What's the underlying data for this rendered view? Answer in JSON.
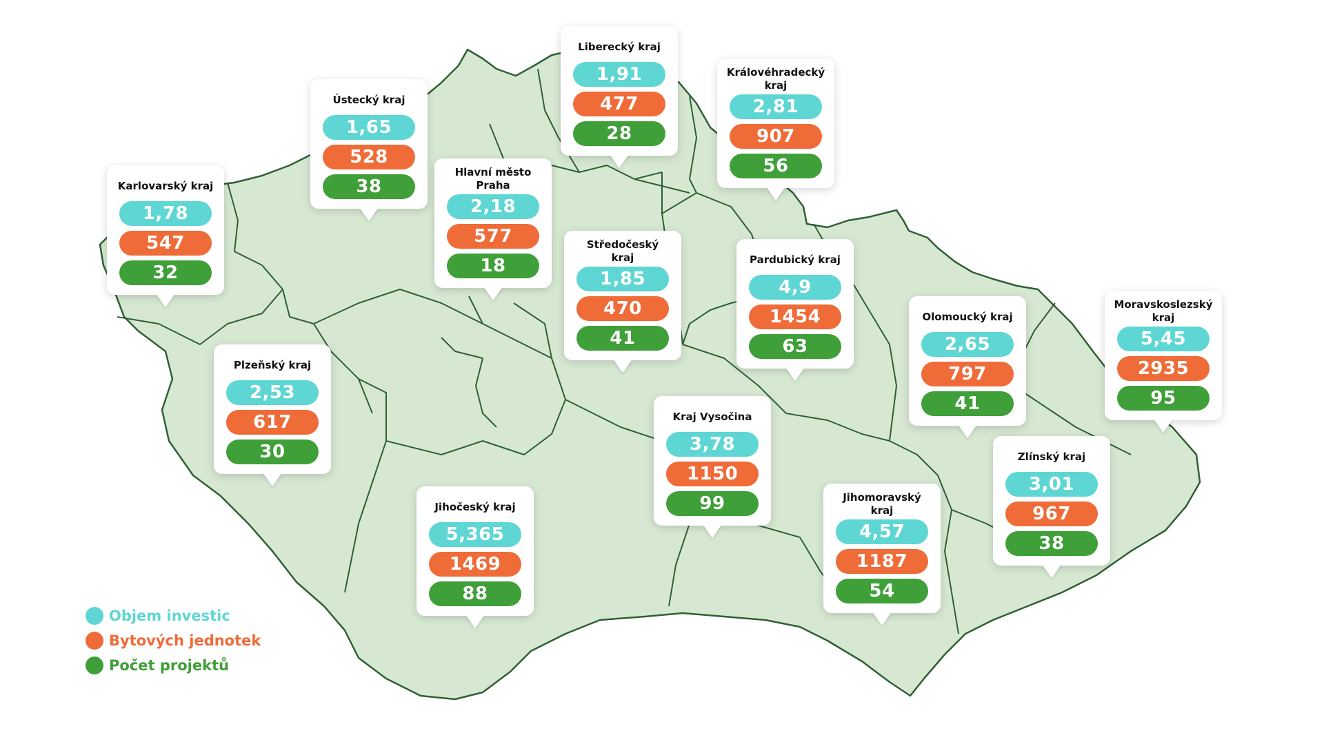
{
  "colors": {
    "investice": "#5ed6d3",
    "byty": "#ef6b38",
    "projekty": "#3f9f38",
    "map_fill": "#d6e8d2",
    "map_border": "#2f5f33"
  },
  "legend": [
    {
      "label": "Objem investic",
      "color": "#5ed6d3"
    },
    {
      "label": "Bytových jednotek",
      "color": "#ef6b38"
    },
    {
      "label": "Počet projektů",
      "color": "#3f9f38"
    }
  ],
  "regions": [
    {
      "id": "karlovarsky",
      "name": "Karlovarský kraj",
      "investice": "1,78",
      "byty": "547",
      "projekty": "32"
    },
    {
      "id": "ustecky",
      "name": "Ústecký kraj",
      "investice": "1,65",
      "byty": "528",
      "projekty": "38"
    },
    {
      "id": "praha",
      "name": "Hlavní město\nPraha",
      "investice": "2,18",
      "byty": "577",
      "projekty": "18"
    },
    {
      "id": "liberecky",
      "name": "Liberecký kraj",
      "investice": "1,91",
      "byty": "477",
      "projekty": "28"
    },
    {
      "id": "kralovehradecky",
      "name": "Královéhradecký\nkraj",
      "investice": "2,81",
      "byty": "907",
      "projekty": "56"
    },
    {
      "id": "stredocesky",
      "name": "Středočeský kraj",
      "investice": "1,85",
      "byty": "470",
      "projekty": "41"
    },
    {
      "id": "pardubicky",
      "name": "Pardubický kraj",
      "investice": "4,9",
      "byty": "1454",
      "projekty": "63"
    },
    {
      "id": "olomoucky",
      "name": "Olomoucký kraj",
      "investice": "2,65",
      "byty": "797",
      "projekty": "41"
    },
    {
      "id": "moravskoslezsky",
      "name": "Moravskoslezský\nkraj",
      "investice": "5,45",
      "byty": "2935",
      "projekty": "95"
    },
    {
      "id": "plzensky",
      "name": "Plzeňský kraj",
      "investice": "2,53",
      "byty": "617",
      "projekty": "30"
    },
    {
      "id": "vysocina",
      "name": "Kraj Vysočina",
      "investice": "3,78",
      "byty": "1150",
      "projekty": "99"
    },
    {
      "id": "zlinsky",
      "name": "Zlínský kraj",
      "investice": "3,01",
      "byty": "967",
      "projekty": "38"
    },
    {
      "id": "jihomoravsky",
      "name": "Jihomoravský kraj",
      "investice": "4,57",
      "byty": "1187",
      "projekty": "54"
    },
    {
      "id": "jihocesky",
      "name": "Jihočeský kraj",
      "investice": "5,365",
      "byty": "1469",
      "projekty": "88"
    }
  ]
}
